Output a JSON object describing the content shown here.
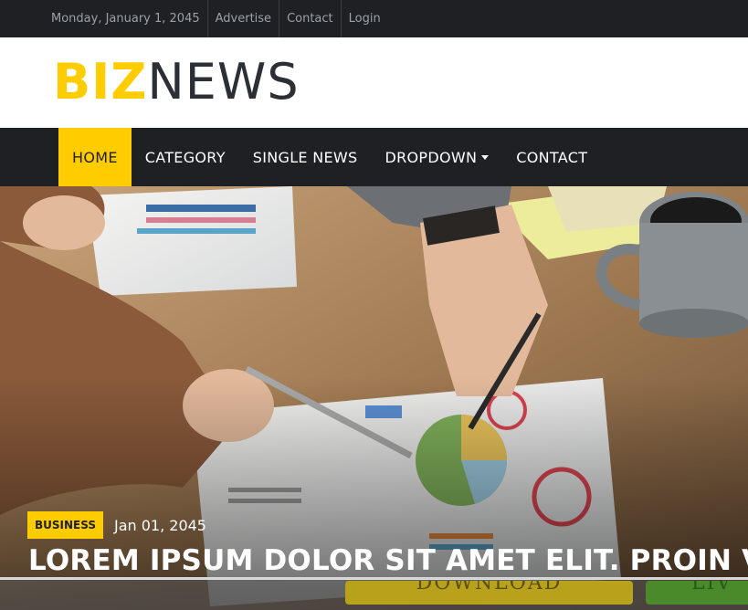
{
  "topbar": {
    "date": "Monday, January 1, 2045",
    "links": [
      "Advertise",
      "Contact",
      "Login"
    ]
  },
  "logo": {
    "part1": "BIZ",
    "part2": "NEWS"
  },
  "nav": {
    "items": [
      "HOME",
      "CATEGORY",
      "SINGLE NEWS",
      "DROPDOWN",
      "CONTACT"
    ],
    "active": "HOME"
  },
  "hero": {
    "category": "BUSINESS",
    "date": "Jan 01, 2045",
    "headline": "LOREM IPSUM DOLOR SIT AMET ELIT. PROIN VITAE",
    "button_left": "DOWNLOAD",
    "button_right": "LIV"
  },
  "colors": {
    "accent": "#ffcc00",
    "dark": "#1e2024"
  }
}
